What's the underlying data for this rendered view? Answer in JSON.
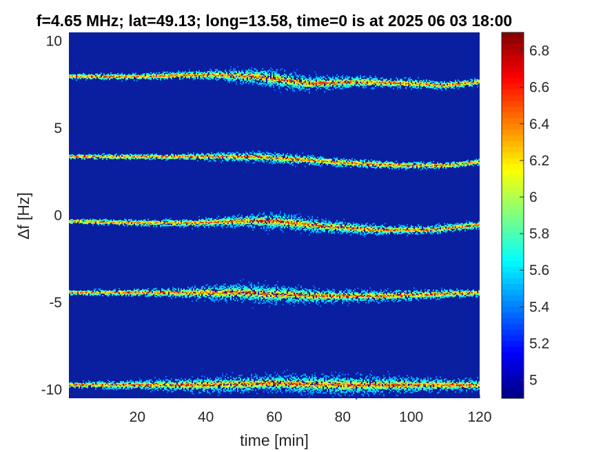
{
  "chart_data": {
    "type": "heatmap",
    "title": "f=4.65 MHz;  lat=49.13; long=13.58, time=0 is at 2025 06 03 18:00",
    "xlabel": "time [min]",
    "ylabel": "∆f [Hz]",
    "xlim": [
      0,
      120
    ],
    "ylim": [
      -10.5,
      10.5
    ],
    "xticks": [
      20,
      40,
      60,
      80,
      100,
      120
    ],
    "xtick_labels": [
      "20",
      "40",
      "60",
      "80",
      "100",
      "120"
    ],
    "yticks": [
      10,
      5,
      0,
      -5,
      -10
    ],
    "ytick_labels": [
      "10",
      "5",
      "0",
      "-5",
      "-10"
    ],
    "background_color": "#0a1ea0",
    "colorbar": {
      "colormap": "jet",
      "range": [
        4.9,
        6.9
      ],
      "ticks": [
        5,
        5.2,
        5.4,
        5.6,
        5.8,
        6,
        6.2,
        6.4,
        6.6,
        6.8
      ],
      "tick_labels": [
        "5",
        "5.2",
        "5.4",
        "5.6",
        "5.8",
        "6",
        "6.2",
        "6.4",
        "6.6",
        "6.8"
      ]
    },
    "traces": [
      {
        "center_points": [
          [
            0,
            8.0
          ],
          [
            20,
            8.0
          ],
          [
            40,
            8.1
          ],
          [
            55,
            8.0
          ],
          [
            70,
            7.6
          ],
          [
            85,
            7.7
          ],
          [
            100,
            7.6
          ],
          [
            110,
            7.5
          ],
          [
            120,
            7.7
          ]
        ],
        "spread_points": [
          [
            0,
            0.15
          ],
          [
            30,
            0.2
          ],
          [
            45,
            0.3
          ],
          [
            58,
            0.55
          ],
          [
            75,
            0.4
          ],
          [
            90,
            0.3
          ],
          [
            120,
            0.2
          ]
        ]
      },
      {
        "center_points": [
          [
            0,
            3.4
          ],
          [
            20,
            3.4
          ],
          [
            40,
            3.4
          ],
          [
            55,
            3.4
          ],
          [
            70,
            3.2
          ],
          [
            85,
            3.0
          ],
          [
            100,
            2.9
          ],
          [
            110,
            2.9
          ],
          [
            120,
            3.1
          ]
        ],
        "spread_points": [
          [
            0,
            0.12
          ],
          [
            30,
            0.15
          ],
          [
            45,
            0.25
          ],
          [
            60,
            0.3
          ],
          [
            80,
            0.25
          ],
          [
            100,
            0.2
          ],
          [
            120,
            0.15
          ]
        ]
      },
      {
        "center_points": [
          [
            0,
            -0.3
          ],
          [
            20,
            -0.4
          ],
          [
            35,
            -0.4
          ],
          [
            50,
            -0.3
          ],
          [
            60,
            -0.3
          ],
          [
            75,
            -0.6
          ],
          [
            90,
            -0.8
          ],
          [
            105,
            -0.8
          ],
          [
            120,
            -0.5
          ]
        ],
        "spread_points": [
          [
            0,
            0.12
          ],
          [
            30,
            0.2
          ],
          [
            45,
            0.3
          ],
          [
            60,
            0.5
          ],
          [
            80,
            0.35
          ],
          [
            100,
            0.25
          ],
          [
            120,
            0.2
          ]
        ]
      },
      {
        "center_points": [
          [
            0,
            -4.4
          ],
          [
            20,
            -4.4
          ],
          [
            40,
            -4.4
          ],
          [
            50,
            -4.4
          ],
          [
            60,
            -4.5
          ],
          [
            75,
            -4.6
          ],
          [
            90,
            -4.6
          ],
          [
            105,
            -4.5
          ],
          [
            120,
            -4.4
          ]
        ],
        "spread_points": [
          [
            0,
            0.12
          ],
          [
            30,
            0.25
          ],
          [
            45,
            0.5
          ],
          [
            60,
            0.55
          ],
          [
            80,
            0.35
          ],
          [
            100,
            0.3
          ],
          [
            120,
            0.2
          ]
        ]
      },
      {
        "center_points": [
          [
            0,
            -9.7
          ],
          [
            20,
            -9.7
          ],
          [
            40,
            -9.7
          ],
          [
            60,
            -9.6
          ],
          [
            80,
            -9.7
          ],
          [
            100,
            -9.7
          ],
          [
            120,
            -9.7
          ]
        ],
        "spread_points": [
          [
            0,
            0.15
          ],
          [
            25,
            0.3
          ],
          [
            40,
            0.45
          ],
          [
            60,
            0.5
          ],
          [
            80,
            0.6
          ],
          [
            100,
            0.45
          ],
          [
            120,
            0.3
          ]
        ]
      }
    ]
  }
}
